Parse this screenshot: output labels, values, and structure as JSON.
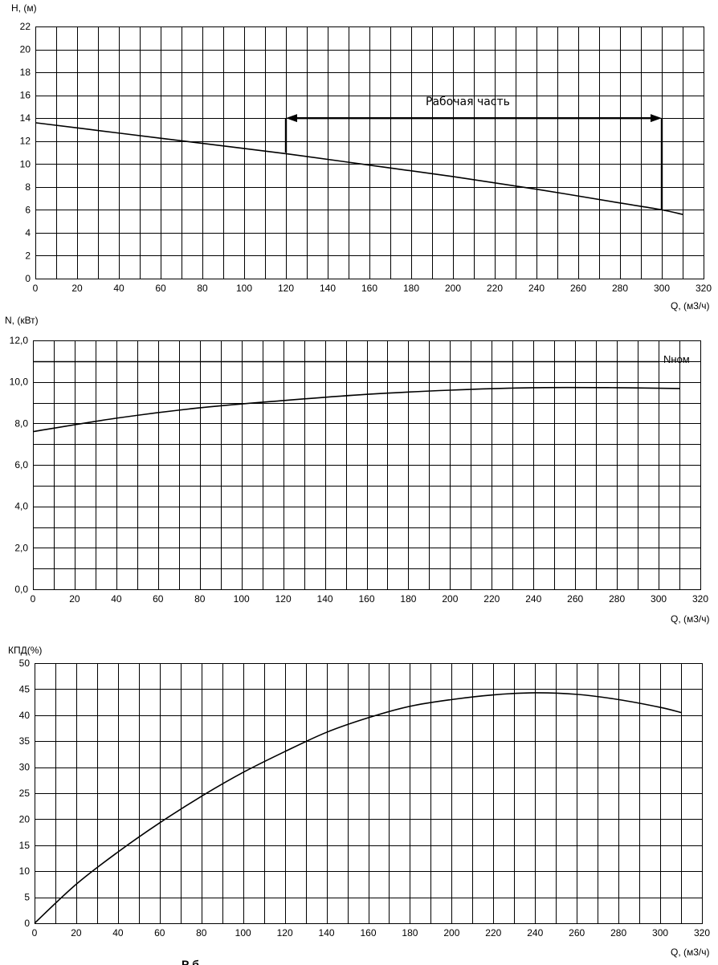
{
  "chart_data": [
    {
      "type": "line",
      "ylabel": "H, (м)",
      "xlabel": "Q, (м3/ч)",
      "xlim": [
        0,
        320
      ],
      "ylim": [
        0,
        22
      ],
      "xticks": [
        "0",
        "20",
        "40",
        "60",
        "80",
        "100",
        "120",
        "140",
        "160",
        "180",
        "200",
        "220",
        "240",
        "260",
        "280",
        "300",
        "320"
      ],
      "yticks": [
        "0",
        "2",
        "4",
        "6",
        "8",
        "10",
        "12",
        "14",
        "16",
        "18",
        "20",
        "22"
      ],
      "grid": true,
      "series": [
        {
          "x": [
            0,
            40,
            80,
            120,
            160,
            200,
            240,
            280,
            300,
            310
          ],
          "y": [
            13.6,
            12.7,
            11.8,
            10.9,
            9.9,
            8.9,
            7.8,
            6.6,
            6.0,
            5.6
          ]
        }
      ],
      "annotation": {
        "text": "Рабочая часть",
        "x_range": [
          120,
          300
        ],
        "y": 14.0,
        "y_start": 11.0,
        "y_end": 6.0
      }
    },
    {
      "type": "line",
      "ylabel": "N, (кВт)",
      "xlabel": "Q, (м3/ч)",
      "xlim": [
        0,
        320
      ],
      "ylim": [
        0,
        12
      ],
      "xticks": [
        "0",
        "20",
        "40",
        "60",
        "80",
        "100",
        "120",
        "140",
        "160",
        "180",
        "200",
        "220",
        "240",
        "260",
        "280",
        "300",
        "320"
      ],
      "yticks": [
        "0,0",
        "2,0",
        "4,0",
        "6,0",
        "8,0",
        "10,0",
        "12,0"
      ],
      "grid": true,
      "series": [
        {
          "x": [
            0,
            40,
            80,
            120,
            160,
            200,
            240,
            280,
            310
          ],
          "y": [
            7.6,
            8.25,
            8.75,
            9.1,
            9.4,
            9.6,
            9.72,
            9.72,
            9.68
          ]
        }
      ],
      "reference_line": {
        "label": "Nном",
        "y": 11.0
      }
    },
    {
      "type": "line",
      "ylabel": "КПД(%)",
      "xlabel": "Q, (м3/ч)",
      "xlim": [
        0,
        320
      ],
      "ylim": [
        0,
        50
      ],
      "xticks": [
        "0",
        "20",
        "40",
        "60",
        "80",
        "100",
        "120",
        "140",
        "160",
        "180",
        "200",
        "220",
        "240",
        "260",
        "280",
        "300",
        "320"
      ],
      "yticks": [
        "0",
        "5",
        "10",
        "15",
        "20",
        "25",
        "30",
        "35",
        "40",
        "45",
        "50"
      ],
      "grid": true,
      "series": [
        {
          "x": [
            0,
            20,
            40,
            60,
            80,
            100,
            120,
            140,
            160,
            180,
            200,
            220,
            240,
            260,
            280,
            300,
            310
          ],
          "y": [
            0,
            7.5,
            13.7,
            19.3,
            24.4,
            29.0,
            33.0,
            36.7,
            39.5,
            41.7,
            43.0,
            43.9,
            44.3,
            44.0,
            43.0,
            41.5,
            40.5
          ]
        }
      ]
    }
  ],
  "caption": "Р б"
}
